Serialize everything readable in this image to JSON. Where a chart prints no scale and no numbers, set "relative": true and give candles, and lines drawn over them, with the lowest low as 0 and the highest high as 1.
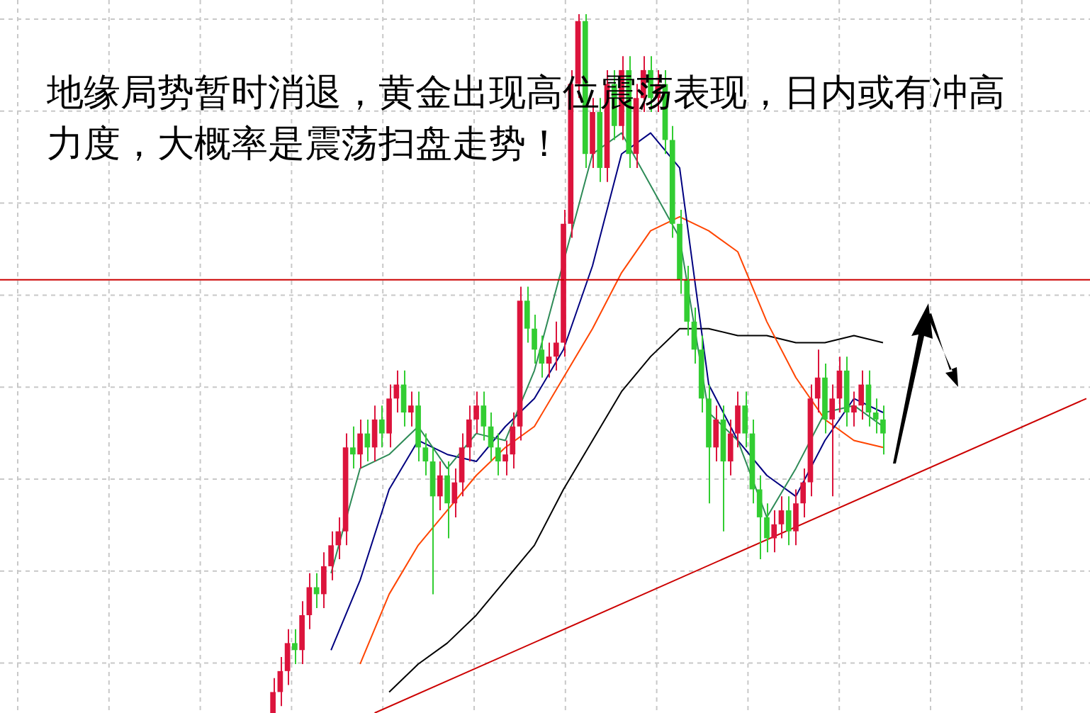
{
  "chart_data": {
    "type": "candlestick",
    "title": "地缘局势暂时消退，黄金出现高位震荡表现，日内或有冲高力度，大概率是震荡扫盘走势！",
    "relative": true,
    "grid": true,
    "categories": [
      null,
      null,
      null,
      null,
      null,
      null,
      null,
      null,
      null,
      null,
      null,
      null,
      null,
      null,
      null,
      null,
      null,
      null,
      null,
      null,
      null,
      null,
      null,
      null,
      null,
      null,
      null,
      null,
      null,
      null,
      null,
      null,
      null,
      null,
      null,
      null,
      null,
      null,
      null,
      null,
      null,
      null,
      null,
      null,
      null,
      null,
      null,
      null,
      null,
      null,
      null,
      null,
      null,
      null,
      null,
      null,
      null,
      null,
      null,
      null,
      null,
      null,
      null,
      null,
      null,
      null,
      null,
      null,
      null,
      null,
      null,
      null,
      null,
      null,
      null,
      null,
      null,
      null,
      null,
      null,
      null,
      null,
      null,
      null,
      null,
      null,
      null,
      null,
      null,
      null,
      null,
      null,
      null,
      null,
      null,
      null,
      null,
      null,
      null,
      null,
      null,
      null,
      null,
      null,
      null,
      null,
      null,
      null,
      null,
      null,
      null,
      null,
      null
    ],
    "colors": [
      "#dc143c",
      "#dc143c",
      "#dc143c",
      "#32cd32",
      "#dc143c",
      "#dc143c",
      "#32cd32",
      "#dc143c",
      "#dc143c",
      "#dc143c",
      "#dc143c",
      "#32cd32",
      "#dc143c",
      "#32cd32",
      "#dc143c",
      "#32cd32",
      "#dc143c",
      "#dc143c",
      "#32cd32",
      "#dc143c",
      "#32cd32",
      "#32cd32",
      "#32cd32",
      "#dc143c",
      "#32cd32",
      "#dc143c",
      "#dc143c",
      "#dc143c",
      "#dc143c",
      "#32cd32",
      "#32cd32",
      "#32cd32",
      "#dc143c",
      "#dc143c",
      "#dc143c",
      "#32cd32",
      "#32cd32",
      "#32cd32",
      "#dc143c",
      "#dc143c",
      "#dc143c",
      "#dc143c",
      "#dc143c",
      "#32cd32",
      "#dc143c",
      "#32cd32",
      "#dc143c",
      "#32cd32",
      "#dc143c",
      "#32cd32",
      "#dc143c",
      "#dc143c",
      "#32cd32",
      "#dc143c",
      "#32cd32",
      "#32cd32",
      "#32cd32",
      "#32cd32",
      "#32cd32",
      "#32cd32",
      "#32cd32",
      "#dc143c",
      "#32cd32",
      "#dc143c",
      "#dc143c",
      "#32cd32",
      "#32cd32",
      "#32cd32",
      "#32cd32",
      "#dc143c",
      "#dc143c",
      "#32cd32",
      "#dc143c",
      "#dc143c",
      "#dc143c",
      "#dc143c",
      "#32cd32",
      "#dc143c",
      "#dc143c",
      "#32cd32",
      "#dc143c",
      "#dc143c",
      "#32cd32",
      "#32cd32",
      "#32cd32",
      null,
      null,
      null,
      null,
      null,
      null,
      null,
      null,
      null,
      null,
      null,
      null,
      null,
      null,
      null,
      null,
      null,
      null,
      null,
      null,
      null,
      null,
      null,
      null,
      null,
      null,
      null,
      null
    ],
    "ohlc": [
      [
        0.0,
        0.05,
        0.0,
        0.03
      ],
      [
        0.03,
        0.08,
        0.01,
        0.06
      ],
      [
        0.06,
        0.12,
        0.04,
        0.1
      ],
      [
        0.1,
        0.12,
        0.07,
        0.09
      ],
      [
        0.09,
        0.16,
        0.07,
        0.14
      ],
      [
        0.14,
        0.2,
        0.12,
        0.18
      ],
      [
        0.18,
        0.2,
        0.15,
        0.17
      ],
      [
        0.17,
        0.23,
        0.15,
        0.21
      ],
      [
        0.21,
        0.26,
        0.19,
        0.24
      ],
      [
        0.24,
        0.28,
        0.22,
        0.26
      ],
      [
        0.26,
        0.4,
        0.24,
        0.38
      ],
      [
        0.38,
        0.41,
        0.35,
        0.37
      ],
      [
        0.37,
        0.42,
        0.35,
        0.4
      ],
      [
        0.4,
        0.42,
        0.36,
        0.38
      ],
      [
        0.38,
        0.44,
        0.36,
        0.42
      ],
      [
        0.42,
        0.44,
        0.38,
        0.4
      ],
      [
        0.4,
        0.47,
        0.38,
        0.45
      ],
      [
        0.45,
        0.49,
        0.43,
        0.47
      ],
      [
        0.47,
        0.49,
        0.41,
        0.43
      ],
      [
        0.43,
        0.46,
        0.41,
        0.44
      ],
      [
        0.44,
        0.46,
        0.36,
        0.38
      ],
      [
        0.38,
        0.4,
        0.34,
        0.36
      ],
      [
        0.36,
        0.38,
        0.17,
        0.31
      ],
      [
        0.31,
        0.36,
        0.29,
        0.34
      ],
      [
        0.34,
        0.36,
        0.25,
        0.3
      ],
      [
        0.3,
        0.35,
        0.28,
        0.33
      ],
      [
        0.33,
        0.4,
        0.31,
        0.38
      ],
      [
        0.38,
        0.44,
        0.36,
        0.42
      ],
      [
        0.42,
        0.46,
        0.4,
        0.44
      ],
      [
        0.44,
        0.46,
        0.39,
        0.41
      ],
      [
        0.41,
        0.43,
        0.36,
        0.38
      ],
      [
        0.38,
        0.4,
        0.34,
        0.36
      ],
      [
        0.36,
        0.39,
        0.34,
        0.37
      ],
      [
        0.37,
        0.43,
        0.35,
        0.41
      ],
      [
        0.41,
        0.61,
        0.39,
        0.59
      ],
      [
        0.59,
        0.61,
        0.53,
        0.55
      ],
      [
        0.55,
        0.57,
        0.5,
        0.52
      ],
      [
        0.52,
        0.54,
        0.48,
        0.5
      ],
      [
        0.5,
        0.53,
        0.48,
        0.51
      ],
      [
        0.51,
        0.56,
        0.49,
        0.53
      ],
      [
        0.53,
        0.72,
        0.51,
        0.7
      ],
      [
        0.7,
        0.92,
        0.68,
        0.9
      ],
      [
        0.9,
        1.0,
        0.88,
        0.99
      ],
      [
        0.99,
        1.0,
        0.78,
        0.8
      ],
      [
        0.8,
        0.88,
        0.78,
        0.86
      ],
      [
        0.86,
        0.88,
        0.76,
        0.78
      ],
      [
        0.78,
        0.92,
        0.76,
        0.9
      ],
      [
        0.9,
        0.92,
        0.82,
        0.84
      ],
      [
        0.84,
        0.94,
        0.82,
        0.92
      ],
      [
        0.92,
        0.94,
        0.78,
        0.8
      ],
      [
        0.8,
        0.9,
        0.78,
        0.88
      ],
      [
        0.88,
        0.94,
        0.86,
        0.92
      ],
      [
        0.92,
        0.94,
        0.86,
        0.88
      ],
      [
        0.88,
        0.92,
        0.86,
        0.9
      ],
      [
        0.9,
        0.92,
        0.8,
        0.82
      ],
      [
        0.82,
        0.84,
        0.68,
        0.7
      ],
      [
        0.7,
        0.72,
        0.6,
        0.62
      ],
      [
        0.62,
        0.64,
        0.54,
        0.56
      ],
      [
        0.56,
        0.58,
        0.5,
        0.52
      ],
      [
        0.52,
        0.54,
        0.43,
        0.45
      ],
      [
        0.45,
        0.47,
        0.3,
        0.38
      ],
      [
        0.38,
        0.44,
        0.36,
        0.42
      ],
      [
        0.42,
        0.44,
        0.26,
        0.36
      ],
      [
        0.36,
        0.42,
        0.34,
        0.4
      ],
      [
        0.4,
        0.46,
        0.38,
        0.44
      ],
      [
        0.44,
        0.46,
        0.38,
        0.4
      ],
      [
        0.4,
        0.42,
        0.3,
        0.32
      ],
      [
        0.32,
        0.34,
        0.22,
        0.28
      ],
      [
        0.28,
        0.3,
        0.23,
        0.25
      ],
      [
        0.25,
        0.29,
        0.23,
        0.27
      ],
      [
        0.27,
        0.31,
        0.25,
        0.29
      ],
      [
        0.29,
        0.31,
        0.24,
        0.26
      ],
      [
        0.26,
        0.32,
        0.24,
        0.3
      ],
      [
        0.3,
        0.35,
        0.28,
        0.33
      ],
      [
        0.33,
        0.47,
        0.31,
        0.45
      ],
      [
        0.45,
        0.52,
        0.43,
        0.48
      ],
      [
        0.48,
        0.5,
        0.4,
        0.42
      ],
      [
        0.42,
        0.47,
        0.31,
        0.45
      ],
      [
        0.45,
        0.51,
        0.43,
        0.49
      ],
      [
        0.49,
        0.51,
        0.41,
        0.43
      ],
      [
        0.43,
        0.46,
        0.41,
        0.44
      ],
      [
        0.44,
        0.49,
        0.42,
        0.47
      ],
      [
        0.47,
        0.49,
        0.41,
        0.43
      ],
      [
        0.43,
        0.45,
        0.4,
        0.42
      ],
      [
        0.42,
        0.44,
        0.37,
        0.4
      ],
      null,
      null,
      null,
      null,
      null,
      null,
      null,
      null,
      null,
      null,
      null,
      null,
      null,
      null,
      null,
      null,
      null,
      null,
      null,
      null,
      null,
      null,
      null,
      null,
      null,
      null,
      null,
      null
    ],
    "series": [
      {
        "type": "line",
        "color": "#2e8b57",
        "values": [
          null,
          null,
          null,
          null,
          null,
          null,
          null,
          null,
          0.2,
          null,
          null,
          null,
          0.35,
          null,
          null,
          null,
          0.37,
          null,
          null,
          null,
          0.41,
          null,
          null,
          null,
          0.35,
          null,
          null,
          null,
          0.4,
          null,
          null,
          null,
          0.39,
          null,
          null,
          null,
          0.49,
          null,
          null,
          null,
          null,
          null,
          null,
          null,
          0.8,
          null,
          null,
          null,
          0.83,
          null,
          null,
          null,
          null,
          null,
          null,
          null,
          0.68,
          null,
          null,
          null,
          0.43,
          null,
          null,
          null,
          0.39,
          null,
          null,
          null,
          0.28,
          null,
          null,
          null,
          0.35,
          null,
          null,
          null,
          0.43,
          null,
          null,
          null,
          0.44,
          null,
          null,
          null,
          0.41,
          null,
          null,
          null,
          null,
          null,
          null,
          null,
          null,
          null,
          null,
          null,
          null,
          null,
          null,
          null,
          null,
          null,
          null,
          null,
          null,
          null,
          null,
          null,
          null,
          null,
          null,
          null,
          null
        ]
      },
      {
        "type": "line",
        "color": "#000080",
        "values": [
          null,
          null,
          null,
          null,
          null,
          null,
          null,
          null,
          0.09,
          null,
          null,
          null,
          0.19,
          null,
          null,
          null,
          0.32,
          null,
          null,
          null,
          0.39,
          null,
          null,
          null,
          0.37,
          null,
          null,
          null,
          0.36,
          null,
          null,
          null,
          0.41,
          null,
          null,
          null,
          0.45,
          null,
          null,
          null,
          0.52,
          null,
          null,
          null,
          0.64,
          null,
          null,
          null,
          0.8,
          null,
          null,
          null,
          0.83,
          null,
          null,
          null,
          0.78,
          null,
          null,
          null,
          0.47,
          null,
          null,
          null,
          0.39,
          null,
          null,
          null,
          0.34,
          null,
          null,
          null,
          0.31,
          null,
          null,
          null,
          0.39,
          null,
          null,
          null,
          0.45,
          null,
          null,
          null,
          0.43,
          null,
          null,
          null,
          null,
          null,
          null,
          null,
          null,
          null,
          null,
          null,
          null,
          null,
          null,
          null,
          null,
          null,
          null,
          null,
          null,
          null,
          null,
          null,
          null,
          null,
          null,
          null,
          null
        ]
      },
      {
        "type": "line",
        "color": "#ff4500",
        "values": [
          null,
          null,
          null,
          null,
          null,
          null,
          null,
          null,
          null,
          null,
          null,
          null,
          0.07,
          null,
          null,
          null,
          0.17,
          null,
          null,
          null,
          0.24,
          null,
          null,
          null,
          0.29,
          null,
          null,
          null,
          0.34,
          null,
          null,
          null,
          0.38,
          null,
          null,
          null,
          0.41,
          null,
          null,
          null,
          0.48,
          null,
          null,
          null,
          0.55,
          null,
          null,
          null,
          0.63,
          null,
          null,
          null,
          0.69,
          null,
          null,
          null,
          0.71,
          null,
          null,
          null,
          0.69,
          null,
          null,
          null,
          0.66,
          null,
          null,
          null,
          0.56,
          null,
          null,
          null,
          0.48,
          null,
          null,
          null,
          0.42,
          null,
          null,
          null,
          0.39,
          null,
          null,
          null,
          0.38,
          null,
          null,
          null,
          null,
          null,
          null,
          null,
          null,
          null,
          null,
          null,
          null,
          null,
          null,
          null,
          null,
          null,
          null,
          null,
          null,
          null,
          null,
          null,
          null,
          null,
          null,
          null,
          null
        ]
      },
      {
        "type": "line",
        "color": "#000000",
        "values": [
          null,
          null,
          null,
          null,
          null,
          null,
          null,
          null,
          null,
          null,
          null,
          null,
          null,
          null,
          null,
          null,
          0.03,
          null,
          null,
          null,
          0.07,
          null,
          null,
          null,
          0.1,
          null,
          null,
          null,
          0.14,
          null,
          null,
          null,
          0.19,
          null,
          null,
          null,
          0.24,
          null,
          null,
          null,
          0.32,
          null,
          null,
          null,
          0.39,
          null,
          null,
          null,
          0.46,
          null,
          null,
          null,
          0.51,
          null,
          null,
          null,
          0.55,
          null,
          null,
          null,
          0.55,
          null,
          null,
          null,
          0.54,
          null,
          null,
          null,
          0.54,
          null,
          null,
          null,
          0.53,
          null,
          null,
          null,
          0.53,
          null,
          null,
          null,
          0.54,
          null,
          null,
          null,
          0.53,
          null,
          null,
          null,
          null,
          null,
          null,
          null,
          null,
          null,
          null,
          null,
          null,
          null,
          null,
          null,
          null,
          null,
          null,
          null,
          null,
          null,
          null,
          null,
          null,
          null,
          null,
          null,
          null
        ]
      },
      {
        "type": "line",
        "color": "#cc0000",
        "values": [
          null,
          null,
          null,
          null,
          null,
          null,
          null,
          null,
          null,
          null,
          null,
          null,
          null,
          null,
          0.0,
          null,
          null,
          null,
          null,
          null,
          null,
          null,
          null,
          null,
          null,
          null,
          null,
          null,
          null,
          null,
          null,
          null,
          null,
          null,
          null,
          null,
          null,
          null,
          null,
          null,
          null,
          null,
          null,
          null,
          null,
          null,
          null,
          null,
          null,
          null,
          null,
          null,
          null,
          null,
          null,
          null,
          null,
          null,
          null,
          null,
          null,
          null,
          null,
          null,
          null,
          null,
          null,
          null,
          null,
          null,
          null,
          null,
          null,
          null,
          null,
          null,
          null,
          null,
          null,
          null,
          null,
          null,
          null,
          null,
          null,
          null,
          null,
          null,
          null,
          null,
          null,
          null,
          null,
          null,
          null,
          null,
          null,
          null,
          null,
          null,
          null,
          null,
          null,
          null,
          null,
          null,
          null,
          null,
          null,
          null,
          null,
          null,
          0.45
        ]
      }
    ],
    "ref_lines": [
      {
        "axis": "y",
        "value": 0.62,
        "color": "#cc0000"
      }
    ]
  }
}
